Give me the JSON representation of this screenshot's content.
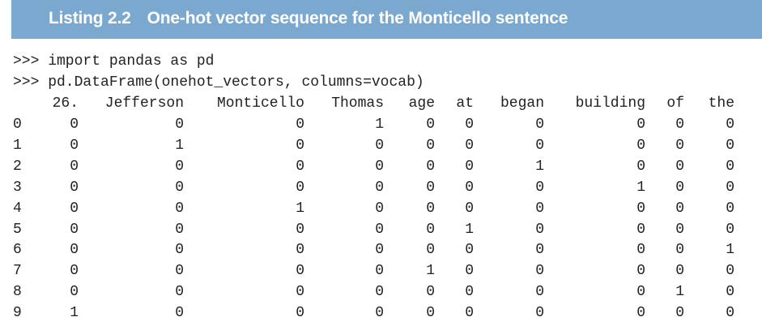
{
  "listing": {
    "number": "Listing 2.2",
    "title": "One-hot vector sequence for the Monticello sentence"
  },
  "commands": [
    ">>> import pandas as pd",
    ">>> pd.DataFrame(onehot_vectors, columns=vocab)"
  ],
  "table": {
    "columns": [
      "26.",
      "Jefferson",
      "Monticello",
      "Thomas",
      "age",
      "at",
      "began",
      "building",
      "of",
      "the"
    ],
    "rows": [
      {
        "index": "0",
        "values": [
          "0",
          "0",
          "0",
          "1",
          "0",
          "0",
          "0",
          "0",
          "0",
          "0"
        ]
      },
      {
        "index": "1",
        "values": [
          "0",
          "1",
          "0",
          "0",
          "0",
          "0",
          "0",
          "0",
          "0",
          "0"
        ]
      },
      {
        "index": "2",
        "values": [
          "0",
          "0",
          "0",
          "0",
          "0",
          "0",
          "1",
          "0",
          "0",
          "0"
        ]
      },
      {
        "index": "3",
        "values": [
          "0",
          "0",
          "0",
          "0",
          "0",
          "0",
          "0",
          "1",
          "0",
          "0"
        ]
      },
      {
        "index": "4",
        "values": [
          "0",
          "0",
          "1",
          "0",
          "0",
          "0",
          "0",
          "0",
          "0",
          "0"
        ]
      },
      {
        "index": "5",
        "values": [
          "0",
          "0",
          "0",
          "0",
          "0",
          "1",
          "0",
          "0",
          "0",
          "0"
        ]
      },
      {
        "index": "6",
        "values": [
          "0",
          "0",
          "0",
          "0",
          "0",
          "0",
          "0",
          "0",
          "0",
          "1"
        ]
      },
      {
        "index": "7",
        "values": [
          "0",
          "0",
          "0",
          "0",
          "1",
          "0",
          "0",
          "0",
          "0",
          "0"
        ]
      },
      {
        "index": "8",
        "values": [
          "0",
          "0",
          "0",
          "0",
          "0",
          "0",
          "0",
          "0",
          "1",
          "0"
        ]
      },
      {
        "index": "9",
        "values": [
          "1",
          "0",
          "0",
          "0",
          "0",
          "0",
          "0",
          "0",
          "0",
          "0"
        ]
      }
    ]
  }
}
